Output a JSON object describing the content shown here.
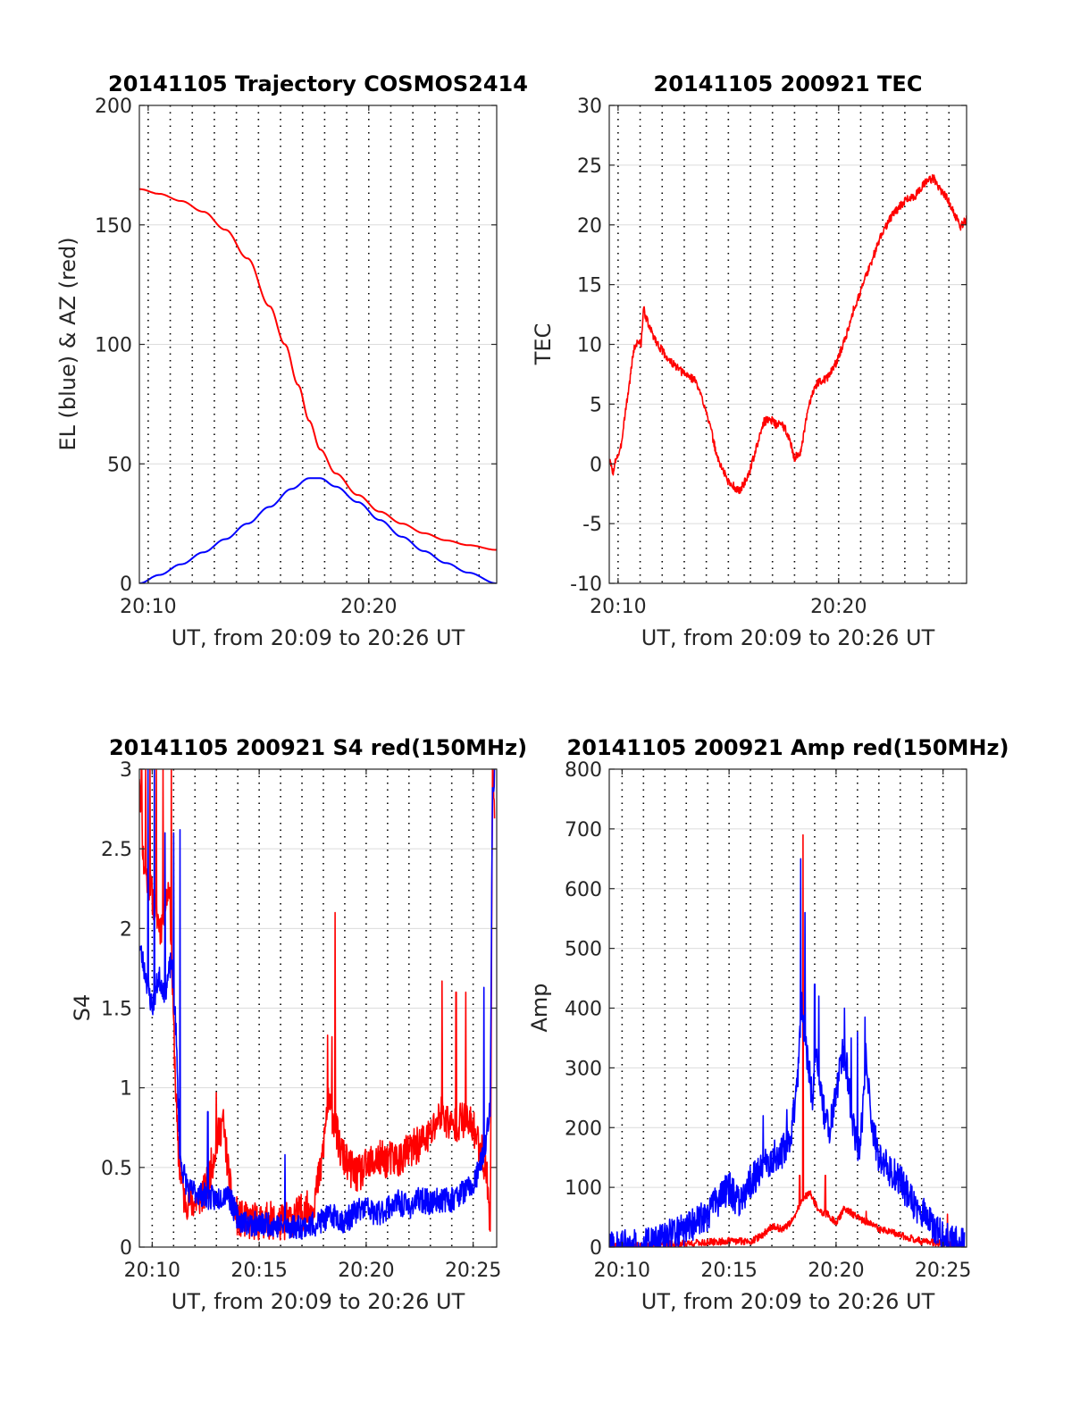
{
  "colors": {
    "red": "#ff0000",
    "blue": "#0000ff",
    "axis": "#262626"
  },
  "chart_data": [
    {
      "id": "traj",
      "type": "line",
      "title": "20141105 Trajectory COSMOS2414",
      "xlabel": "UT, from 20:09 to 20:26 UT",
      "ylabel": "EL (blue) & AZ (red)",
      "xlim": [
        9.6,
        25.8
      ],
      "ylim": [
        0,
        200
      ],
      "xticks": [
        10,
        20
      ],
      "xtick_labels": [
        "20:10",
        "20:20"
      ],
      "yticks": [
        0,
        50,
        100,
        150,
        200
      ],
      "ytick_labels": [
        "0",
        "50",
        "100",
        "150",
        "200"
      ],
      "grid_minutes": [
        10,
        11,
        12,
        13,
        14,
        15,
        16,
        17,
        18,
        19,
        20,
        21,
        22,
        23,
        24,
        25
      ],
      "series": [
        {
          "color": "red",
          "style": "smooth",
          "x": [
            9.6,
            10.5,
            11.5,
            12.5,
            13.5,
            14.5,
            15.5,
            16.2,
            16.8,
            17.3,
            17.8,
            18.5,
            19.5,
            20.5,
            21.5,
            22.5,
            23.5,
            24.5,
            25.8
          ],
          "y": [
            165,
            163,
            160,
            155.5,
            148,
            136,
            116,
            100,
            83,
            68,
            56,
            46,
            37,
            30,
            25,
            21,
            18,
            16,
            14
          ]
        },
        {
          "color": "blue",
          "style": "smooth",
          "x": [
            9.6,
            10.5,
            11.5,
            12.5,
            13.5,
            14.5,
            15.5,
            16.5,
            17.3,
            17.8,
            18.5,
            19.5,
            20.5,
            21.5,
            22.5,
            23.5,
            24.5,
            25.8
          ],
          "y": [
            0,
            3.5,
            8,
            13,
            18.5,
            25,
            32,
            39.5,
            44,
            44,
            40.5,
            34,
            26.5,
            19.5,
            13.5,
            8.5,
            4.5,
            0
          ]
        }
      ]
    },
    {
      "id": "tec",
      "type": "line",
      "title": "20141105 200921 TEC",
      "xlabel": "UT, from 20:09 to 20:26 UT",
      "ylabel": "TEC",
      "xlim": [
        9.6,
        25.8
      ],
      "ylim": [
        -10,
        30
      ],
      "xticks": [
        10,
        20
      ],
      "xtick_labels": [
        "20:10",
        "20:20"
      ],
      "yticks": [
        -10,
        -5,
        0,
        5,
        10,
        15,
        20,
        25,
        30
      ],
      "ytick_labels": [
        "-10",
        "-5",
        "0",
        "5",
        "10",
        "15",
        "20",
        "25",
        "30"
      ],
      "grid_minutes": [
        10,
        11,
        12,
        13,
        14,
        15,
        16,
        17,
        18,
        19,
        20,
        21,
        22,
        23,
        24,
        25
      ],
      "series": [
        {
          "color": "red",
          "style": "noisy",
          "noise": 0.35,
          "seed": 3,
          "x": [
            9.6,
            9.8,
            9.9,
            10.1,
            10.3,
            10.5,
            10.7,
            10.9,
            11.05,
            11.15,
            11.4,
            11.8,
            12.3,
            12.8,
            13.5,
            14.0,
            14.5,
            15.0,
            15.5,
            15.9,
            16.3,
            16.6,
            16.9,
            17.2,
            17.4,
            17.7,
            18.0,
            18.3,
            18.6,
            18.9,
            19.2,
            19.5,
            19.9,
            20.3,
            20.6,
            21.0,
            21.5,
            22.0,
            22.5,
            23.0,
            23.5,
            24.0,
            24.3,
            24.6,
            24.9,
            25.2,
            25.5,
            25.8
          ],
          "y": [
            0.3,
            -0.8,
            0.5,
            1.0,
            4.0,
            6.5,
            9.5,
            10.3,
            10.0,
            13.0,
            11.5,
            10.0,
            8.7,
            7.8,
            7.0,
            4.5,
            0.5,
            -1.5,
            -2.3,
            -1.0,
            1.5,
            3.5,
            3.8,
            3.2,
            3.4,
            2.5,
            0.5,
            1.0,
            4.5,
            6.5,
            7.0,
            7.2,
            8.5,
            10.5,
            12.5,
            14.5,
            17.0,
            19.5,
            21.0,
            22.0,
            22.5,
            23.7,
            23.9,
            23.0,
            22.3,
            21.2,
            19.8,
            20.5
          ]
        }
      ]
    },
    {
      "id": "s4",
      "type": "line",
      "title": "20141105 200921 S4 red(150MHz)",
      "xlabel": "UT, from 20:09 to 20:26 UT",
      "ylabel": "S4",
      "xlim": [
        9.4,
        26.1
      ],
      "ylim": [
        0,
        3
      ],
      "xticks": [
        10,
        15,
        20,
        25
      ],
      "xtick_labels": [
        "20:10",
        "20:15",
        "20:20",
        "20:25"
      ],
      "yticks": [
        0,
        0.5,
        1,
        1.5,
        2,
        2.5,
        3
      ],
      "ytick_labels": [
        "0",
        "0.5",
        "1",
        "1.5",
        "2",
        "2.5",
        "3"
      ],
      "grid_minutes": [
        10,
        11,
        12,
        13,
        14,
        15,
        16,
        17,
        18,
        19,
        20,
        21,
        22,
        23,
        24,
        25
      ],
      "series": [
        {
          "color": "red",
          "style": "noisy",
          "noise": 0.12,
          "seed": 11,
          "x": [
            9.4,
            9.6,
            10.0,
            10.4,
            10.8,
            11.0,
            11.2,
            11.5,
            12.0,
            12.5,
            13.0,
            13.3,
            13.7,
            14.0,
            14.5,
            15.0,
            15.5,
            16.0,
            16.5,
            17.0,
            17.5,
            17.9,
            18.2,
            18.5,
            18.8,
            19.2,
            19.6,
            20.0,
            20.5,
            21.0,
            21.5,
            22.0,
            22.5,
            23.0,
            23.5,
            24.0,
            24.5,
            25.0,
            25.4,
            25.7,
            25.8,
            25.9,
            26.0
          ],
          "y": [
            3.0,
            2.4,
            2.2,
            2.0,
            2.3,
            1.4,
            0.6,
            0.3,
            0.28,
            0.35,
            0.65,
            0.8,
            0.3,
            0.18,
            0.16,
            0.16,
            0.17,
            0.15,
            0.18,
            0.22,
            0.25,
            0.5,
            0.9,
            0.8,
            0.6,
            0.5,
            0.45,
            0.5,
            0.55,
            0.55,
            0.55,
            0.6,
            0.65,
            0.7,
            0.85,
            0.75,
            0.8,
            0.75,
            0.6,
            0.4,
            0.05,
            3.0,
            2.8
          ],
          "spikes": [
            [
              9.5,
              3.0
            ],
            [
              9.7,
              3.0
            ],
            [
              9.9,
              3.0
            ],
            [
              10.2,
              3.0
            ],
            [
              10.5,
              3.0
            ],
            [
              10.9,
              3.0
            ],
            [
              18.55,
              2.1
            ],
            [
              18.2,
              1.33
            ],
            [
              18.4,
              1.32
            ],
            [
              23.55,
              1.67
            ],
            [
              24.2,
              1.6
            ],
            [
              24.65,
              1.6
            ],
            [
              13.0,
              0.97
            ]
          ]
        },
        {
          "color": "blue",
          "style": "noisy",
          "noise": 0.08,
          "seed": 23,
          "x": [
            9.4,
            9.7,
            10.0,
            10.3,
            10.6,
            10.9,
            11.1,
            11.3,
            11.7,
            12.0,
            12.5,
            13.0,
            13.5,
            14.0,
            14.5,
            15.0,
            15.5,
            16.0,
            16.5,
            17.0,
            17.5,
            18.0,
            18.5,
            19.0,
            19.5,
            20.0,
            20.5,
            21.0,
            21.5,
            22.0,
            22.5,
            23.0,
            23.5,
            24.0,
            24.5,
            25.0,
            25.3,
            25.6,
            25.8,
            25.9,
            26.0
          ],
          "y": [
            1.9,
            1.7,
            1.5,
            1.7,
            1.6,
            1.8,
            1.4,
            0.55,
            0.35,
            0.35,
            0.32,
            0.3,
            0.35,
            0.18,
            0.15,
            0.14,
            0.15,
            0.13,
            0.13,
            0.13,
            0.14,
            0.17,
            0.2,
            0.16,
            0.22,
            0.25,
            0.2,
            0.25,
            0.28,
            0.25,
            0.3,
            0.28,
            0.3,
            0.3,
            0.35,
            0.38,
            0.5,
            0.65,
            0.9,
            2.8,
            3.0
          ],
          "spikes": [
            [
              9.8,
              3.0
            ],
            [
              10.1,
              3.0
            ],
            [
              10.6,
              2.6
            ],
            [
              11.0,
              2.6
            ],
            [
              11.3,
              2.62
            ],
            [
              12.6,
              0.85
            ],
            [
              16.2,
              0.58
            ],
            [
              25.5,
              1.63
            ]
          ]
        }
      ]
    },
    {
      "id": "amp",
      "type": "line",
      "title": "20141105 200921 Amp red(150MHz)",
      "xlabel": "UT, from 20:09 to 20:26 UT",
      "ylabel": "Amp",
      "xlim": [
        9.4,
        26.1
      ],
      "ylim": [
        0,
        800
      ],
      "xticks": [
        10,
        15,
        20,
        25
      ],
      "xtick_labels": [
        "20:10",
        "20:15",
        "20:20",
        "20:25"
      ],
      "yticks": [
        0,
        100,
        200,
        300,
        400,
        500,
        600,
        700,
        800
      ],
      "ytick_labels": [
        "0",
        "100",
        "200",
        "300",
        "400",
        "500",
        "600",
        "700",
        "800"
      ],
      "grid_minutes": [
        10,
        11,
        12,
        13,
        14,
        15,
        16,
        17,
        18,
        19,
        20,
        21,
        22,
        23,
        24,
        25
      ],
      "series": [
        {
          "color": "red",
          "style": "noisy",
          "noise": 6,
          "seed": 41,
          "floor": 0,
          "x": [
            9.4,
            11.0,
            12.0,
            13.0,
            14.0,
            15.0,
            15.5,
            16.0,
            16.5,
            17.0,
            17.5,
            18.0,
            18.4,
            18.8,
            19.2,
            19.6,
            20.0,
            20.4,
            20.8,
            21.2,
            21.6,
            22.0,
            22.5,
            23.0,
            23.5,
            24.0,
            24.5,
            25.0,
            25.5,
            26.0
          ],
          "y": [
            0,
            2,
            4,
            6,
            8,
            10,
            10,
            10,
            18,
            35,
            30,
            45,
            80,
            90,
            60,
            55,
            40,
            65,
            55,
            45,
            40,
            30,
            25,
            20,
            15,
            10,
            8,
            6,
            3,
            0
          ],
          "spikes": [
            [
              18.45,
              690
            ],
            [
              18.3,
              120
            ],
            [
              19.5,
              120
            ],
            [
              21.4,
              60
            ],
            [
              25.2,
              55
            ]
          ]
        },
        {
          "color": "blue",
          "style": "noisy",
          "noise": 28,
          "seed": 57,
          "floor": 0,
          "x": [
            9.4,
            10.0,
            11.0,
            11.5,
            12.0,
            12.5,
            13.0,
            13.5,
            14.0,
            14.5,
            15.0,
            15.5,
            16.0,
            16.5,
            17.0,
            17.5,
            17.9,
            18.2,
            18.4,
            18.6,
            18.9,
            19.1,
            19.4,
            19.7,
            20.0,
            20.3,
            20.5,
            20.8,
            21.1,
            21.4,
            21.7,
            22.0,
            22.5,
            23.0,
            23.5,
            24.0,
            24.5,
            25.0,
            25.5,
            26.0
          ],
          "y": [
            2,
            2,
            3,
            8,
            15,
            25,
            30,
            45,
            55,
            80,
            100,
            70,
            110,
            130,
            150,
            160,
            190,
            280,
            400,
            330,
            250,
            330,
            230,
            200,
            260,
            330,
            300,
            200,
            150,
            320,
            200,
            150,
            130,
            110,
            80,
            60,
            35,
            18,
            8,
            3
          ],
          "spikes": [
            [
              18.35,
              650
            ],
            [
              18.55,
              560
            ],
            [
              19.0,
              440
            ],
            [
              19.2,
              420
            ],
            [
              20.4,
              400
            ],
            [
              21.0,
              360
            ],
            [
              21.35,
              385
            ],
            [
              20.7,
              350
            ],
            [
              16.6,
              220
            ],
            [
              17.7,
              230
            ]
          ]
        }
      ]
    }
  ]
}
